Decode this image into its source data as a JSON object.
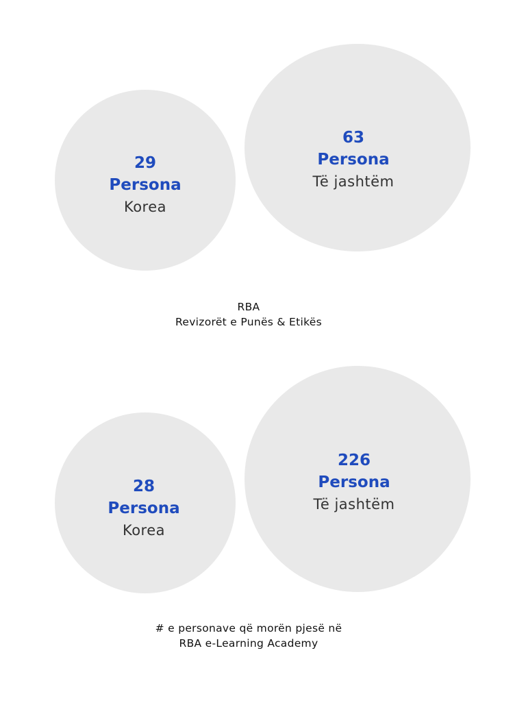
{
  "sections": [
    {
      "bubbles": [
        {
          "count": "29",
          "unit": "Persona",
          "label": "Korea"
        },
        {
          "count": "63",
          "unit": "Persona",
          "label": "Të jashtëm"
        }
      ],
      "caption": {
        "line1": "RBA",
        "line2": "Revizorët e Punës & Etikës"
      }
    },
    {
      "bubbles": [
        {
          "count": "28",
          "unit": "Persona",
          "label": "Korea"
        },
        {
          "count": "226",
          "unit": "Persona",
          "label": "Të jashtëm"
        }
      ],
      "caption": {
        "line1": "# e personave që morën pjesë në",
        "line2": "RBA e-Learning Academy"
      }
    }
  ],
  "colors": {
    "bubble": "#e9e9e9",
    "accent": "#1f4bbd",
    "text": "#333333"
  }
}
